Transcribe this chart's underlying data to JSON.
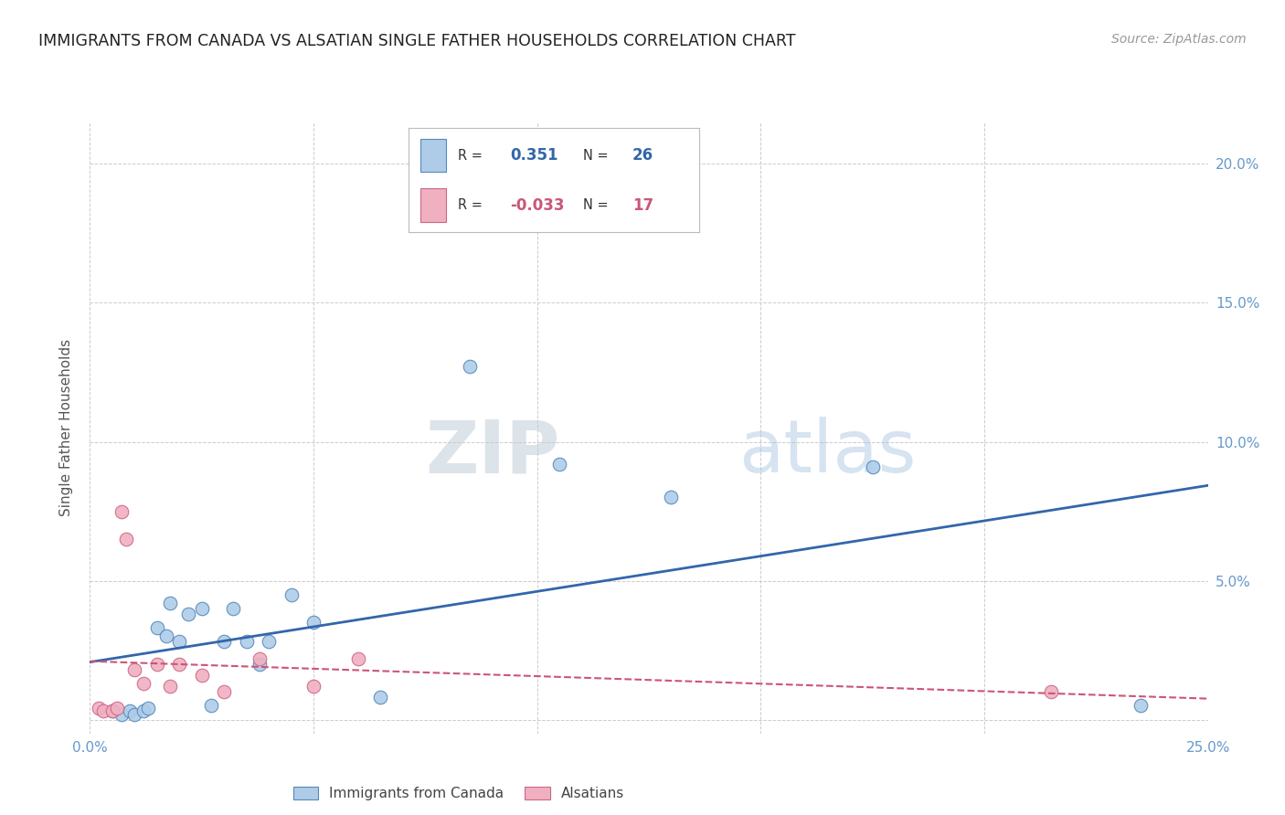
{
  "title": "IMMIGRANTS FROM CANADA VS ALSATIAN SINGLE FATHER HOUSEHOLDS CORRELATION CHART",
  "source": "Source: ZipAtlas.com",
  "ylabel": "Single Father Households",
  "xlim": [
    0.0,
    0.25
  ],
  "ylim": [
    -0.005,
    0.215
  ],
  "xticks": [
    0.0,
    0.05,
    0.1,
    0.15,
    0.2,
    0.25
  ],
  "yticks": [
    0.0,
    0.05,
    0.1,
    0.15,
    0.2
  ],
  "xtick_labels_left": [
    "0.0%",
    "",
    "",
    "",
    "",
    ""
  ],
  "xtick_labels_right": [
    "",
    "",
    "",
    "",
    "",
    "25.0%"
  ],
  "ytick_labels_right": [
    "",
    "5.0%",
    "10.0%",
    "15.0%",
    "20.0%"
  ],
  "blue_R": "0.351",
  "blue_N": "26",
  "pink_R": "-0.033",
  "pink_N": "17",
  "blue_scatter_x": [
    0.005,
    0.007,
    0.009,
    0.01,
    0.012,
    0.013,
    0.015,
    0.017,
    0.018,
    0.02,
    0.022,
    0.025,
    0.027,
    0.03,
    0.032,
    0.035,
    0.038,
    0.04,
    0.045,
    0.05,
    0.065,
    0.085,
    0.105,
    0.13,
    0.175,
    0.235
  ],
  "blue_scatter_y": [
    0.003,
    0.002,
    0.003,
    0.002,
    0.003,
    0.004,
    0.033,
    0.03,
    0.042,
    0.028,
    0.038,
    0.04,
    0.005,
    0.028,
    0.04,
    0.028,
    0.02,
    0.028,
    0.045,
    0.035,
    0.008,
    0.127,
    0.092,
    0.08,
    0.091,
    0.005
  ],
  "pink_scatter_x": [
    0.002,
    0.003,
    0.005,
    0.006,
    0.007,
    0.008,
    0.01,
    0.012,
    0.015,
    0.018,
    0.02,
    0.025,
    0.03,
    0.038,
    0.05,
    0.06,
    0.215
  ],
  "pink_scatter_y": [
    0.004,
    0.003,
    0.003,
    0.004,
    0.075,
    0.065,
    0.018,
    0.013,
    0.02,
    0.012,
    0.02,
    0.016,
    0.01,
    0.022,
    0.012,
    0.022,
    0.01
  ],
  "blue_color": "#aecce8",
  "blue_edge_color": "#5588bb",
  "blue_line_color": "#3366aa",
  "pink_color": "#f0b0c0",
  "pink_edge_color": "#cc6688",
  "pink_line_color": "#cc5577",
  "watermark_zip": "ZIP",
  "watermark_atlas": "atlas",
  "legend_labels": [
    "Immigrants from Canada",
    "Alsatians"
  ],
  "background_color": "#ffffff",
  "grid_color": "#cccccc",
  "title_color": "#222222",
  "source_color": "#999999",
  "tick_color": "#6699cc",
  "ylabel_color": "#555555"
}
